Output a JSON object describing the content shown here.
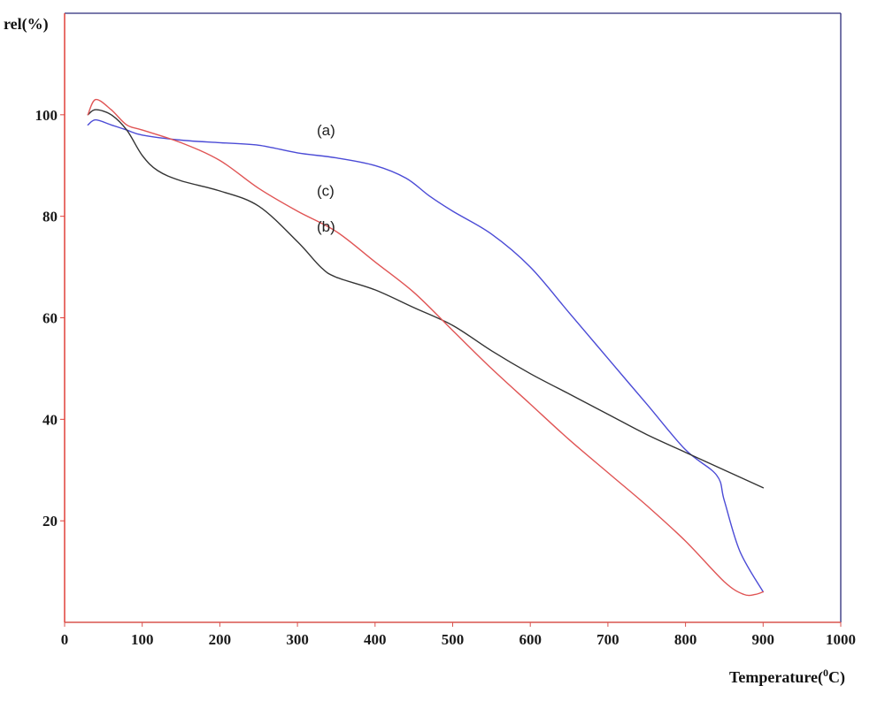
{
  "chart_data": {
    "type": "line",
    "ylabel": "rel(%)",
    "xlabel": {
      "prefix": "Temperature(",
      "superscript": "0",
      "suffix": "C)"
    },
    "xlim": [
      0,
      1000
    ],
    "ylim": [
      0,
      120
    ],
    "x_ticks": [
      "0",
      "100",
      "200",
      "300",
      "400",
      "500",
      "600",
      "700",
      "800",
      "900",
      "1000"
    ],
    "y_ticks": [
      "20",
      "40",
      "60",
      "80",
      "100"
    ],
    "grid": false,
    "colors": {
      "axis_y": "#e0403a",
      "axis_x": "#d9534f",
      "frame": "#2a2a7a"
    },
    "series": [
      {
        "name": "(a)",
        "color": "#4b4bd6",
        "x": [
          30,
          40,
          60,
          80,
          100,
          150,
          200,
          250,
          300,
          350,
          400,
          440,
          470,
          500,
          550,
          600,
          650,
          700,
          750,
          800,
          840,
          850,
          870,
          900
        ],
        "y": [
          98,
          99,
          98,
          97,
          96,
          95,
          94.5,
          94,
          92.5,
          91.5,
          90,
          87.5,
          84,
          81,
          76.5,
          70,
          61,
          52,
          43,
          34,
          29,
          24,
          14,
          6
        ]
      },
      {
        "name": "(b)",
        "color": "#333333",
        "x": [
          30,
          40,
          60,
          80,
          100,
          120,
          150,
          200,
          250,
          300,
          330,
          350,
          400,
          450,
          500,
          550,
          600,
          650,
          700,
          750,
          800,
          850,
          900
        ],
        "y": [
          100,
          101,
          100,
          97,
          92,
          89,
          87,
          85,
          82,
          75,
          70,
          68,
          65.5,
          62,
          58.5,
          53.5,
          49,
          45,
          41,
          37,
          33.5,
          30,
          26.5
        ]
      },
      {
        "name": "(c)",
        "color": "#e05555",
        "x": [
          30,
          40,
          60,
          80,
          100,
          150,
          200,
          250,
          300,
          350,
          400,
          450,
          500,
          550,
          600,
          650,
          700,
          750,
          800,
          850,
          875,
          890,
          900
        ],
        "y": [
          100,
          103,
          101,
          98,
          97,
          94.5,
          91,
          85.5,
          81,
          77,
          71,
          65,
          57.5,
          50,
          43,
          36,
          29.5,
          23,
          16,
          8,
          5.5,
          5.5,
          6
        ]
      }
    ],
    "annotations": [
      {
        "text": "(a)",
        "x": 325,
        "y": 96
      },
      {
        "text": "(c)",
        "x": 325,
        "y": 84
      },
      {
        "text": "(b)",
        "x": 325,
        "y": 77
      }
    ]
  }
}
